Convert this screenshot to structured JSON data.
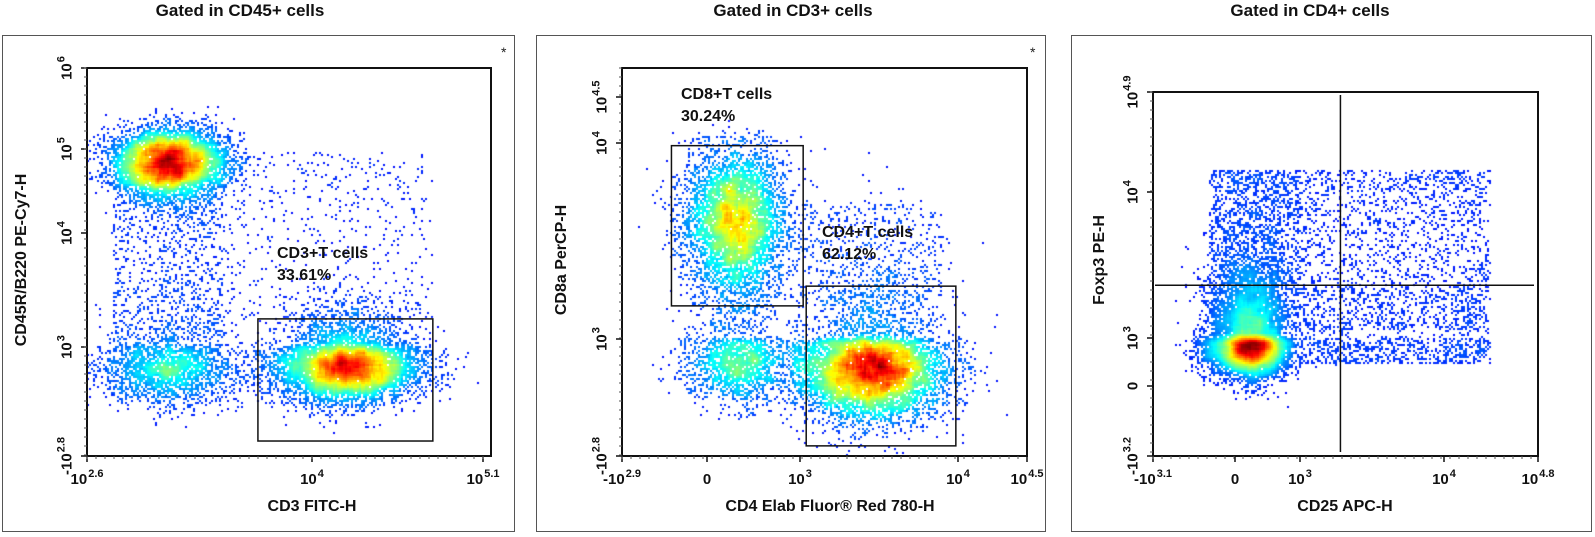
{
  "chart_data": [
    {
      "type": "scatter",
      "style": "pseudocolor density dot plot (jet colormap)",
      "title": "Gated in CD45+ cells",
      "xlabel": "CD3 FITC-H",
      "ylabel": "CD45R/B220 PE-Cy7-H",
      "asterisk": "*",
      "x_scale": "biexponential",
      "y_scale": "biexponential",
      "x_ticks": [
        {
          "value": 398,
          "base": "10",
          "exp": "2.6"
        },
        {
          "value": 10000,
          "base": "10",
          "exp": "4"
        },
        {
          "value": 125893,
          "base": "10",
          "exp": "5.1"
        }
      ],
      "y_ticks": [
        {
          "value": -631,
          "base": "-10",
          "exp": "2.8"
        },
        {
          "value": 1000,
          "base": "10",
          "exp": "3"
        },
        {
          "value": 10000,
          "base": "10",
          "exp": "4"
        },
        {
          "value": 100000,
          "base": "10",
          "exp": "5"
        },
        {
          "value": 1000000,
          "base": "10",
          "exp": "6"
        }
      ],
      "gates": [
        {
          "shape": "rectangle",
          "name": "CD3+T cells",
          "percent": "33.61%",
          "x": [
            4800,
            60000
          ],
          "y": [
            -300,
            1800
          ]
        }
      ],
      "populations": [
        {
          "kind": "cluster",
          "center": [
            1400,
            68000
          ],
          "spread_decades": [
            0.16,
            0.2
          ],
          "events": 7000
        },
        {
          "kind": "cluster",
          "center": [
            17000,
            400
          ],
          "spread_decades": [
            0.22,
            0.3
          ],
          "events": 7500
        },
        {
          "kind": "cluster",
          "center": [
            1400,
            350
          ],
          "spread_decades": [
            0.2,
            0.3
          ],
          "events": 2200
        },
        {
          "kind": "uniform",
          "x": [
            600,
            3000
          ],
          "y": [
            800,
            30000
          ],
          "events": 900
        },
        {
          "kind": "uniform",
          "x": [
            3000,
            60000
          ],
          "y": [
            1500,
            90000
          ],
          "events": 450
        }
      ]
    },
    {
      "type": "scatter",
      "style": "pseudocolor density dot plot (jet colormap)",
      "title": "Gated in CD3+ cells",
      "xlabel": "CD4 Elab Fluor® Red 780-H",
      "ylabel": "CD8a PerCP-H",
      "asterisk": "*",
      "x_scale": "biexponential",
      "y_scale": "biexponential",
      "x_ticks": [
        {
          "value": -794,
          "base": "-10",
          "exp": "2.9"
        },
        {
          "value": 0,
          "base": "0",
          "exp": ""
        },
        {
          "value": 1000,
          "base": "10",
          "exp": "3"
        },
        {
          "value": 10000,
          "base": "10",
          "exp": "4"
        },
        {
          "value": 31623,
          "base": "10",
          "exp": "4.5"
        }
      ],
      "y_ticks": [
        {
          "value": -631,
          "base": "-10",
          "exp": "2.8"
        },
        {
          "value": 1000,
          "base": "10",
          "exp": "3"
        },
        {
          "value": 10000,
          "base": "10",
          "exp": "4"
        },
        {
          "value": 31623,
          "base": "10",
          "exp": "4.5"
        }
      ],
      "gates": [
        {
          "shape": "rectangle",
          "name": "CD8+T cells",
          "percent": "30.24%",
          "x": [
            -150,
            1050
          ],
          "y": [
            1500,
            9700
          ]
        },
        {
          "shape": "rectangle",
          "name": "CD4+T cells",
          "percent": "62.12%",
          "x": [
            1100,
            9700
          ],
          "y": [
            -400,
            1900
          ]
        }
      ],
      "populations": [
        {
          "kind": "cluster",
          "center": [
            110,
            4000
          ],
          "spread_decades": [
            0.28,
            0.18
          ],
          "events": 5000
        },
        {
          "kind": "cluster",
          "center": [
            2900,
            250
          ],
          "spread_decades": [
            0.22,
            0.4
          ],
          "events": 8000
        },
        {
          "kind": "cluster",
          "center": [
            130,
            400
          ],
          "spread_decades": [
            0.3,
            0.35
          ],
          "events": 1800
        },
        {
          "kind": "uniform",
          "x": [
            1000,
            8000
          ],
          "y": [
            1500,
            5000
          ],
          "events": 350
        }
      ]
    },
    {
      "type": "scatter",
      "style": "pseudocolor density dot plot (jet colormap)",
      "title": "Gated in CD4+ cells",
      "xlabel": "CD25 APC-H",
      "ylabel": "Foxp3 PE-H",
      "asterisk": "",
      "x_scale": "biexponential",
      "y_scale": "biexponential",
      "x_ticks": [
        {
          "value": -1259,
          "base": "-10",
          "exp": "3.1"
        },
        {
          "value": 0,
          "base": "0",
          "exp": ""
        },
        {
          "value": 1000,
          "base": "10",
          "exp": "3"
        },
        {
          "value": 10000,
          "base": "10",
          "exp": "4"
        },
        {
          "value": 63096,
          "base": "10",
          "exp": "4.8"
        }
      ],
      "y_ticks": [
        {
          "value": -1585,
          "base": "-10",
          "exp": "3.2"
        },
        {
          "value": 0,
          "base": "0",
          "exp": ""
        },
        {
          "value": 1000,
          "base": "10",
          "exp": "3"
        },
        {
          "value": 10000,
          "base": "10",
          "exp": "4"
        },
        {
          "value": 79433,
          "base": "10",
          "exp": "4.9"
        }
      ],
      "quadrant": {
        "x": 1950,
        "y": 2350
      },
      "gates": [],
      "populations": [
        {
          "kind": "cluster",
          "center": [
            74,
            675
          ],
          "spread_decades": [
            0.3,
            0.33
          ],
          "events": 9000
        },
        {
          "kind": "uniform",
          "x": [
            -120,
            24500
          ],
          "y": [
            1130,
            15800
          ],
          "events": 3200
        },
        {
          "kind": "uniform",
          "x": [
            1000,
            24500
          ],
          "y": [
            200,
            2300
          ],
          "events": 900
        }
      ]
    }
  ]
}
